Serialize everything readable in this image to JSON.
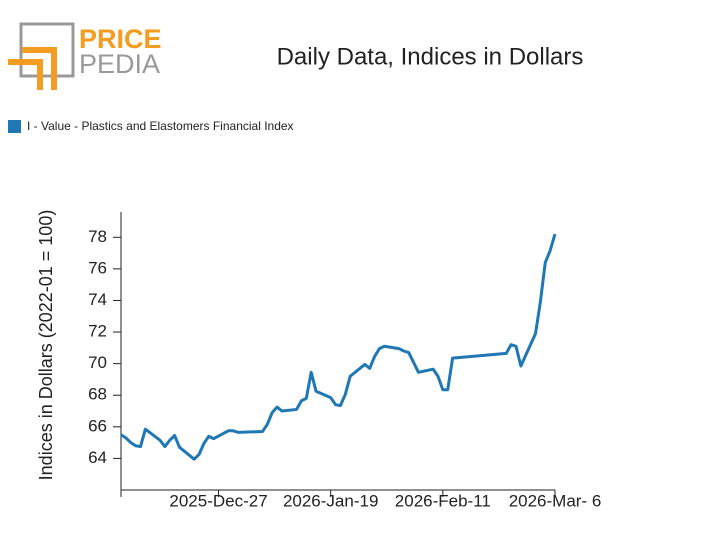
{
  "logo": {
    "top": "PRICE",
    "bottom": "PEDIA"
  },
  "chart_data": {
    "type": "line",
    "title": "Daily Data, Indices in Dollars",
    "y_label": "Indices in Dollars (2022-01 = 100)",
    "x": [
      "2025-12-07",
      "2025-12-08",
      "2025-12-09",
      "2025-12-10",
      "2025-12-11",
      "2025-12-12",
      "2025-12-15",
      "2025-12-16",
      "2025-12-17",
      "2025-12-18",
      "2025-12-19",
      "2025-12-22",
      "2025-12-23",
      "2025-12-24",
      "2025-12-25",
      "2025-12-26",
      "2025-12-29",
      "2025-12-30",
      "2025-12-31",
      "2026-01-05",
      "2026-01-06",
      "2026-01-07",
      "2026-01-08",
      "2026-01-09",
      "2026-01-12",
      "2026-01-13",
      "2026-01-14",
      "2026-01-15",
      "2026-01-16",
      "2026-01-19",
      "2026-01-20",
      "2026-01-21",
      "2026-01-22",
      "2026-01-23",
      "2026-01-26",
      "2026-01-27",
      "2026-01-28",
      "2026-01-29",
      "2026-01-30",
      "2026-02-02",
      "2026-02-03",
      "2026-02-04",
      "2026-02-06",
      "2026-02-09",
      "2026-02-10",
      "2026-02-11",
      "2026-02-12",
      "2026-02-13",
      "2026-02-24",
      "2026-02-25",
      "2026-02-26",
      "2026-02-27",
      "2026-03-02",
      "2026-03-03",
      "2026-03-04",
      "2026-03-05",
      "2026-03-06"
    ],
    "series": [
      {
        "name": "I - Value - Plastics and Elastomers Financial Index",
        "color": "#1f77b4",
        "values": [
          65.5,
          65.3,
          65.0,
          64.8,
          64.75,
          65.85,
          65.15,
          64.75,
          65.15,
          65.45,
          64.7,
          63.95,
          64.25,
          64.95,
          65.4,
          65.25,
          65.75,
          65.75,
          65.65,
          65.7,
          66.15,
          66.9,
          67.25,
          67.0,
          67.1,
          67.65,
          67.8,
          69.45,
          68.25,
          67.85,
          67.4,
          67.35,
          68.05,
          69.2,
          69.95,
          69.7,
          70.45,
          70.95,
          71.1,
          70.95,
          70.8,
          70.7,
          69.45,
          69.65,
          69.2,
          68.35,
          68.35,
          70.35,
          70.65,
          71.2,
          71.1,
          69.85,
          71.9,
          73.9,
          76.4,
          77.15,
          78.2
        ]
      }
    ],
    "xlim": [
      "2025-12-07",
      "2026-03-06"
    ],
    "xticks": [
      {
        "value": "2025-12-27",
        "label": "2025-Dec-27"
      },
      {
        "value": "2026-01-19",
        "label": "2026-Jan-19"
      },
      {
        "value": "2026-02-11",
        "label": "2026-Feb-11"
      },
      {
        "value": "2026-03-06",
        "label": "2026-Mar- 6"
      }
    ],
    "ylim": [
      62,
      79.6
    ],
    "yticks": [
      64,
      66,
      68,
      70,
      72,
      74,
      76,
      78
    ],
    "legend": "top-left"
  }
}
